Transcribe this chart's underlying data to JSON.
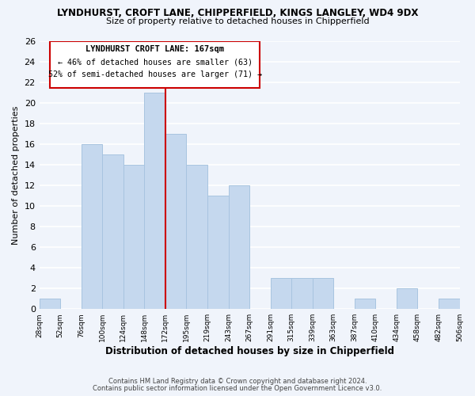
{
  "title": "LYNDHURST, CROFT LANE, CHIPPERFIELD, KINGS LANGLEY, WD4 9DX",
  "subtitle": "Size of property relative to detached houses in Chipperfield",
  "xlabel": "Distribution of detached houses by size in Chipperfield",
  "ylabel": "Number of detached properties",
  "bar_heights": [
    1,
    0,
    16,
    15,
    14,
    21,
    17,
    14,
    11,
    12,
    0,
    3,
    3,
    3,
    0,
    1,
    0,
    2,
    0,
    1
  ],
  "bar_color": "#c5d8ee",
  "bar_edgecolor": "#a8c4e0",
  "highlight_bar_index": 5,
  "highlight_color": "#cc0000",
  "ylim": [
    0,
    26
  ],
  "yticks": [
    0,
    2,
    4,
    6,
    8,
    10,
    12,
    14,
    16,
    18,
    20,
    22,
    24,
    26
  ],
  "xtick_labels": [
    "28sqm",
    "52sqm",
    "76sqm",
    "100sqm",
    "124sqm",
    "148sqm",
    "172sqm",
    "195sqm",
    "219sqm",
    "243sqm",
    "267sqm",
    "291sqm",
    "315sqm",
    "339sqm",
    "363sqm",
    "387sqm",
    "410sqm",
    "434sqm",
    "458sqm",
    "482sqm",
    "506sqm"
  ],
  "annotation_title": "LYNDHURST CROFT LANE: 167sqm",
  "annotation_line2": "← 46% of detached houses are smaller (63)",
  "annotation_line3": "52% of semi-detached houses are larger (71) →",
  "footer1": "Contains HM Land Registry data © Crown copyright and database right 2024.",
  "footer2": "Contains public sector information licensed under the Open Government Licence v3.0.",
  "background_color": "#f0f4fb",
  "grid_color": "#ffffff"
}
